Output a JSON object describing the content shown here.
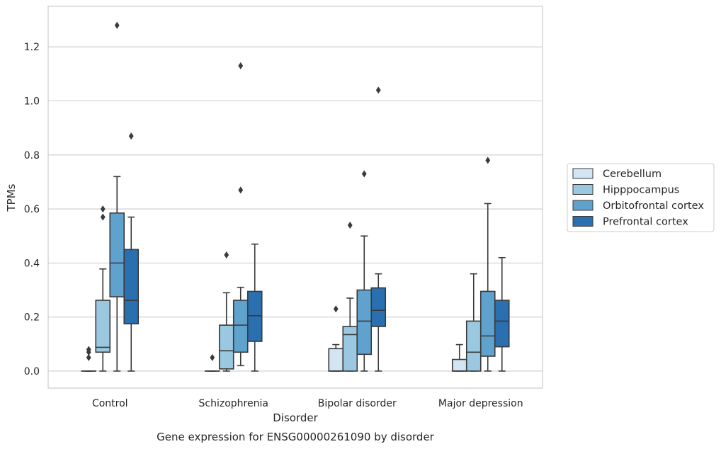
{
  "chart_data": {
    "type": "boxplot",
    "caption": "Gene expression for ENSG00000261090 by disorder",
    "xlabel": "Disorder",
    "ylabel": "TPMs",
    "ylim": [
      -0.063,
      1.35
    ],
    "yticks": [
      0.0,
      0.2,
      0.4,
      0.6,
      0.8,
      1.0,
      1.2
    ],
    "ytick_labels": [
      "0.0",
      "0.2",
      "0.4",
      "0.6",
      "0.8",
      "1.0",
      "1.2"
    ],
    "grid": "horizontal",
    "legend_position": "right",
    "categories": [
      "Control",
      "Schizophrenia",
      "Bipolar disorder",
      "Major depression"
    ],
    "series": [
      {
        "name": "Cerebellum",
        "color": "#d3e4f3",
        "boxes": [
          {
            "whisker_low": 0,
            "q1": 0,
            "median": 0,
            "q3": 0,
            "whisker_high": 0,
            "outliers": [
              0.05,
              0.07,
              0.08
            ]
          },
          {
            "whisker_low": 0,
            "q1": 0,
            "median": 0,
            "q3": 0,
            "whisker_high": 0,
            "outliers": [
              0.05
            ]
          },
          {
            "whisker_low": 0,
            "q1": 0,
            "median": 0,
            "q3": 0.083,
            "whisker_high": 0.098,
            "outliers": [
              0.23
            ]
          },
          {
            "whisker_low": 0,
            "q1": 0,
            "median": 0,
            "q3": 0.043,
            "whisker_high": 0.098,
            "outliers": []
          }
        ]
      },
      {
        "name": "Hipppocampus",
        "color": "#9ac8e0",
        "boxes": [
          {
            "whisker_low": 0,
            "q1": 0.07,
            "median": 0.088,
            "q3": 0.262,
            "whisker_high": 0.378,
            "outliers": [
              0.57,
              0.6
            ]
          },
          {
            "whisker_low": 0,
            "q1": 0.008,
            "median": 0.075,
            "q3": 0.17,
            "whisker_high": 0.29,
            "outliers": [
              0.43
            ]
          },
          {
            "whisker_low": 0,
            "q1": 0,
            "median": 0.135,
            "q3": 0.165,
            "whisker_high": 0.27,
            "outliers": [
              0.54
            ]
          },
          {
            "whisker_low": 0,
            "q1": 0,
            "median": 0.07,
            "q3": 0.185,
            "whisker_high": 0.36,
            "outliers": []
          }
        ]
      },
      {
        "name": "Orbitofrontal cortex",
        "color": "#5fa2ce",
        "boxes": [
          {
            "whisker_low": 0,
            "q1": 0.275,
            "median": 0.4,
            "q3": 0.585,
            "whisker_high": 0.72,
            "outliers": [
              1.28
            ]
          },
          {
            "whisker_low": 0.02,
            "q1": 0.07,
            "median": 0.17,
            "q3": 0.262,
            "whisker_high": 0.31,
            "outliers": [
              0.67,
              1.13
            ]
          },
          {
            "whisker_low": 0,
            "q1": 0.062,
            "median": 0.185,
            "q3": 0.3,
            "whisker_high": 0.5,
            "outliers": [
              0.73
            ]
          },
          {
            "whisker_low": 0,
            "q1": 0.055,
            "median": 0.13,
            "q3": 0.295,
            "whisker_high": 0.62,
            "outliers": [
              0.78
            ]
          }
        ]
      },
      {
        "name": "Prefrontal cortex",
        "color": "#2a6fb0",
        "boxes": [
          {
            "whisker_low": 0,
            "q1": 0.175,
            "median": 0.262,
            "q3": 0.45,
            "whisker_high": 0.57,
            "outliers": [
              0.87
            ]
          },
          {
            "whisker_low": 0,
            "q1": 0.11,
            "median": 0.205,
            "q3": 0.295,
            "whisker_high": 0.47,
            "outliers": []
          },
          {
            "whisker_low": 0,
            "q1": 0.165,
            "median": 0.225,
            "q3": 0.308,
            "whisker_high": 0.36,
            "outliers": [
              1.04
            ]
          },
          {
            "whisker_low": 0,
            "q1": 0.09,
            "median": 0.185,
            "q3": 0.262,
            "whisker_high": 0.42,
            "outliers": []
          }
        ]
      }
    ]
  }
}
